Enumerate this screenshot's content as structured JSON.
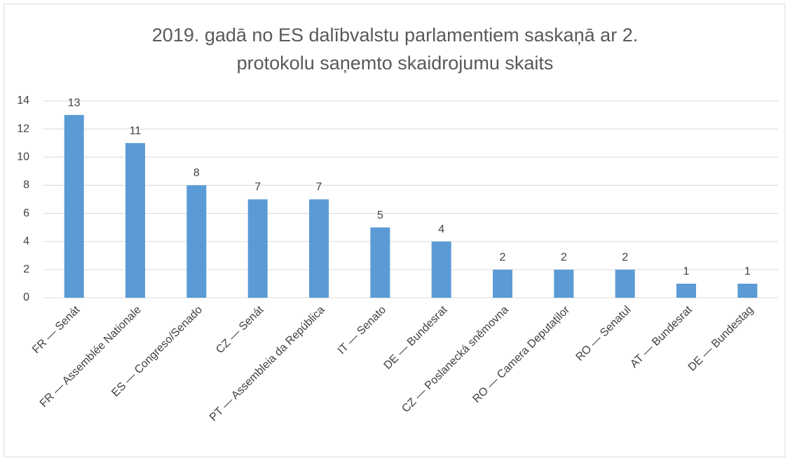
{
  "chart_data": {
    "type": "bar",
    "title": "2019. gadā no ES dalībvalstu parlamentiem saskaņā ar 2. protokolu saņemto skaidrojumu skaits",
    "categories": [
      "FR — Senát",
      "FR — Assemblée Nationale",
      "ES — Congreso/Senado",
      "CZ — Senát",
      "PT — Assembleia da República",
      "IT — Senato",
      "DE — Bundesrat",
      "CZ — Poslanecká sněmovna",
      "RO — Camera Deputaților",
      "RO — Senatul",
      "AT — Bundesrat",
      "DE — Bundestag"
    ],
    "values": [
      13,
      11,
      8,
      7,
      7,
      5,
      4,
      2,
      2,
      2,
      1,
      1
    ],
    "color": "#5b9bd5",
    "ylim": [
      0,
      14
    ],
    "yticks": [
      0,
      2,
      4,
      6,
      8,
      10,
      12,
      14
    ],
    "grid": true
  }
}
